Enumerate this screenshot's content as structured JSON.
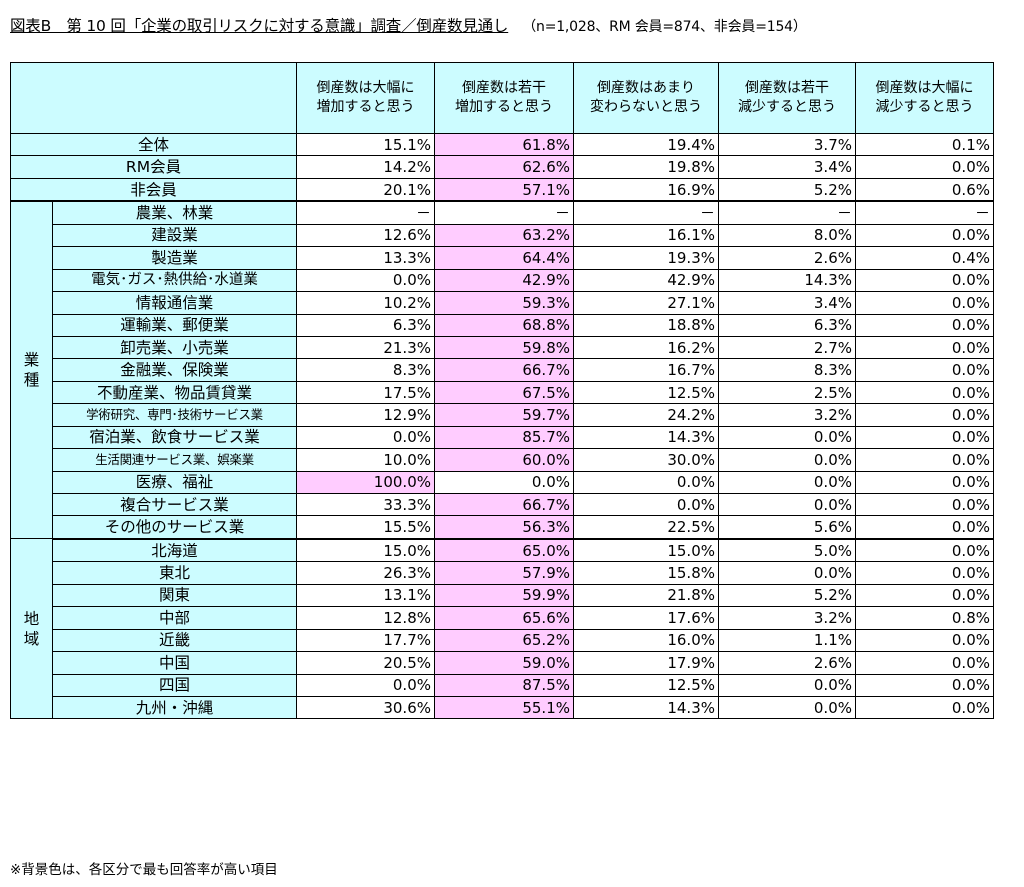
{
  "title": {
    "main": "図表B　第 10 回「企業の取引リスクに対する意識」調査／倒産数見通し",
    "sample": "（n=1,028、RM 会員=874、非会員=154）"
  },
  "columns": [
    [
      "倒産数は大幅に",
      "増加すると思う"
    ],
    [
      "倒産数は若干",
      "増加すると思う"
    ],
    [
      "倒産数はあまり",
      "変わらないと思う"
    ],
    [
      "倒産数は若干",
      "減少すると思う"
    ],
    [
      "倒産数は大幅に",
      "減少すると思う"
    ]
  ],
  "summary": [
    {
      "label": "全体",
      "values": [
        "15.1%",
        "61.8%",
        "19.4%",
        "3.7%",
        "0.1%"
      ],
      "hi": 1
    },
    {
      "label": "RM会員",
      "values": [
        "14.2%",
        "62.6%",
        "19.8%",
        "3.4%",
        "0.0%"
      ],
      "hi": 1
    },
    {
      "label": "非会員",
      "values": [
        "20.1%",
        "57.1%",
        "16.9%",
        "5.2%",
        "0.6%"
      ],
      "hi": 1
    }
  ],
  "industry": {
    "group": [
      "業",
      "種"
    ],
    "rows": [
      {
        "label": "農業、林業",
        "values": [
          "－",
          "－",
          "－",
          "－",
          "－"
        ],
        "hi": -1
      },
      {
        "label": "建設業",
        "values": [
          "12.6%",
          "63.2%",
          "16.1%",
          "8.0%",
          "0.0%"
        ],
        "hi": 1
      },
      {
        "label": "製造業",
        "values": [
          "13.3%",
          "64.4%",
          "19.3%",
          "2.6%",
          "0.4%"
        ],
        "hi": 1
      },
      {
        "label": "電気･ガス･熱供給･水道業",
        "values": [
          "0.0%",
          "42.9%",
          "42.9%",
          "14.3%",
          "0.0%"
        ],
        "hi": 1,
        "size": "mid"
      },
      {
        "label": "情報通信業",
        "values": [
          "10.2%",
          "59.3%",
          "27.1%",
          "3.4%",
          "0.0%"
        ],
        "hi": 1
      },
      {
        "label": "運輸業、郵便業",
        "values": [
          "6.3%",
          "68.8%",
          "18.8%",
          "6.3%",
          "0.0%"
        ],
        "hi": 1
      },
      {
        "label": "卸売業、小売業",
        "values": [
          "21.3%",
          "59.8%",
          "16.2%",
          "2.7%",
          "0.0%"
        ],
        "hi": 1
      },
      {
        "label": "金融業、保険業",
        "values": [
          "8.3%",
          "66.7%",
          "16.7%",
          "8.3%",
          "0.0%"
        ],
        "hi": 1
      },
      {
        "label": "不動産業、物品賃貸業",
        "values": [
          "17.5%",
          "67.5%",
          "12.5%",
          "2.5%",
          "0.0%"
        ],
        "hi": 1
      },
      {
        "label": "学術研究、専門･技術サービス業",
        "values": [
          "12.9%",
          "59.7%",
          "24.2%",
          "3.2%",
          "0.0%"
        ],
        "hi": 1,
        "size": "small"
      },
      {
        "label": "宿泊業、飲食サービス業",
        "values": [
          "0.0%",
          "85.7%",
          "14.3%",
          "0.0%",
          "0.0%"
        ],
        "hi": 1
      },
      {
        "label": "生活関連サービス業、娯楽業",
        "values": [
          "10.0%",
          "60.0%",
          "30.0%",
          "0.0%",
          "0.0%"
        ],
        "hi": 1,
        "size": "small"
      },
      {
        "label": "医療、福祉",
        "values": [
          "100.0%",
          "0.0%",
          "0.0%",
          "0.0%",
          "0.0%"
        ],
        "hi": 0
      },
      {
        "label": "複合サービス業",
        "values": [
          "33.3%",
          "66.7%",
          "0.0%",
          "0.0%",
          "0.0%"
        ],
        "hi": 1
      },
      {
        "label": "その他のサービス業",
        "values": [
          "15.5%",
          "56.3%",
          "22.5%",
          "5.6%",
          "0.0%"
        ],
        "hi": 1
      }
    ]
  },
  "region": {
    "group": [
      "地",
      "域"
    ],
    "rows": [
      {
        "label": "北海道",
        "values": [
          "15.0%",
          "65.0%",
          "15.0%",
          "5.0%",
          "0.0%"
        ],
        "hi": 1
      },
      {
        "label": "東北",
        "values": [
          "26.3%",
          "57.9%",
          "15.8%",
          "0.0%",
          "0.0%"
        ],
        "hi": 1
      },
      {
        "label": "関東",
        "values": [
          "13.1%",
          "59.9%",
          "21.8%",
          "5.2%",
          "0.0%"
        ],
        "hi": 1
      },
      {
        "label": "中部",
        "values": [
          "12.8%",
          "65.6%",
          "17.6%",
          "3.2%",
          "0.8%"
        ],
        "hi": 1
      },
      {
        "label": "近畿",
        "values": [
          "17.7%",
          "65.2%",
          "16.0%",
          "1.1%",
          "0.0%"
        ],
        "hi": 1
      },
      {
        "label": "中国",
        "values": [
          "20.5%",
          "59.0%",
          "17.9%",
          "2.6%",
          "0.0%"
        ],
        "hi": 1
      },
      {
        "label": "四国",
        "values": [
          "0.0%",
          "87.5%",
          "12.5%",
          "0.0%",
          "0.0%"
        ],
        "hi": 1
      },
      {
        "label": "九州・沖縄",
        "values": [
          "30.6%",
          "55.1%",
          "14.3%",
          "0.0%",
          "0.0%"
        ],
        "hi": 1
      }
    ]
  },
  "note": "※背景色は、各区分で最も回答率が高い項目",
  "colors": {
    "header_bg": "#ccfcff",
    "highlight_bg": "#ffccff"
  }
}
